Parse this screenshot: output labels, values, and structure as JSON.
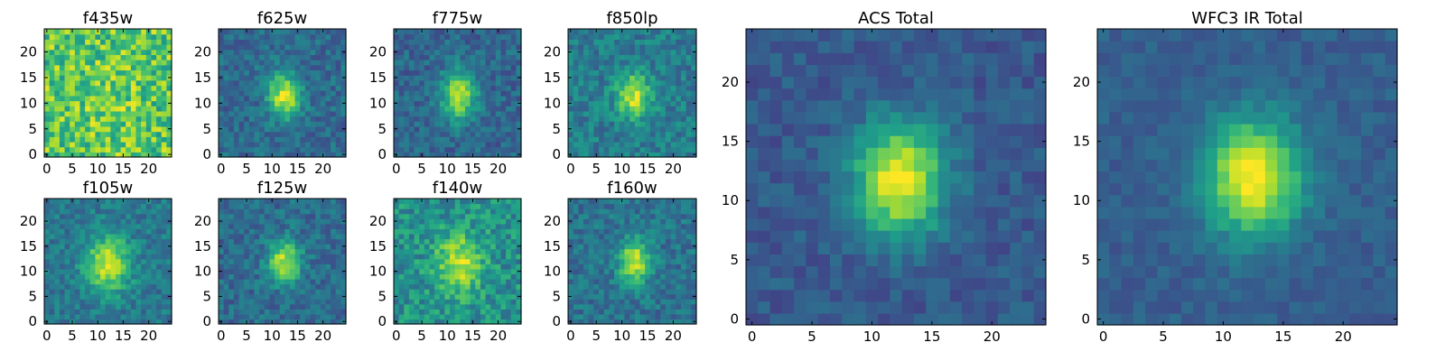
{
  "chart_data": {
    "type": "heatmap",
    "colormap": "viridis",
    "grid_size": 25,
    "panels": [
      {
        "name": "f435w",
        "title": "f435w",
        "source": {
          "cx": 12,
          "cy": 11,
          "sx": 3.0,
          "sy": 3.8,
          "amp": 0.08
        },
        "background": 0.74,
        "noise": 0.22,
        "xticks": [
          0,
          5,
          10,
          15,
          20
        ],
        "yticks": [
          0,
          5,
          10,
          15,
          20
        ],
        "xlim": [
          0,
          25
        ],
        "ylim": [
          0,
          25
        ]
      },
      {
        "name": "f625w",
        "title": "f625w",
        "source": {
          "cx": 12.5,
          "cy": 11.5,
          "sx": 2.2,
          "sy": 3.0,
          "amp": 0.6
        },
        "background": 0.35,
        "noise": 0.12,
        "xticks": [
          0,
          5,
          10,
          15,
          20
        ],
        "yticks": [
          0,
          5,
          10,
          15,
          20
        ],
        "xlim": [
          0,
          25
        ],
        "ylim": [
          0,
          25
        ]
      },
      {
        "name": "f775w",
        "title": "f775w",
        "source": {
          "cx": 12.3,
          "cy": 11.5,
          "sx": 2.3,
          "sy": 3.4,
          "amp": 0.58
        },
        "background": 0.33,
        "noise": 0.12,
        "xticks": [
          0,
          5,
          10,
          15,
          20
        ],
        "yticks": [
          0,
          5,
          10,
          15,
          20
        ],
        "xlim": [
          0,
          25
        ],
        "ylim": [
          0,
          25
        ]
      },
      {
        "name": "f850lp",
        "title": "f850lp",
        "source": {
          "cx": 12.3,
          "cy": 11.5,
          "sx": 2.3,
          "sy": 3.0,
          "amp": 0.5
        },
        "background": 0.42,
        "noise": 0.13,
        "xticks": [
          0,
          5,
          10,
          15,
          20
        ],
        "yticks": [
          0,
          5,
          10,
          15,
          20
        ],
        "xlim": [
          0,
          25
        ],
        "ylim": [
          0,
          25
        ]
      },
      {
        "name": "f105w",
        "title": "f105w",
        "source": {
          "cx": 12,
          "cy": 11.5,
          "sx": 3.0,
          "sy": 4.0,
          "amp": 0.52
        },
        "background": 0.4,
        "noise": 0.12,
        "xticks": [
          0,
          5,
          10,
          15,
          20
        ],
        "yticks": [
          0,
          5,
          10,
          15,
          20
        ],
        "xlim": [
          0,
          25
        ],
        "ylim": [
          0,
          25
        ]
      },
      {
        "name": "f125w",
        "title": "f125w",
        "source": {
          "cx": 12.5,
          "cy": 12,
          "sx": 2.3,
          "sy": 3.0,
          "amp": 0.55
        },
        "background": 0.35,
        "noise": 0.12,
        "xticks": [
          0,
          5,
          10,
          15,
          20
        ],
        "yticks": [
          0,
          5,
          10,
          15,
          20
        ],
        "xlim": [
          0,
          25
        ],
        "ylim": [
          0,
          25
        ]
      },
      {
        "name": "f140w",
        "title": "f140w",
        "source": {
          "cx": 12.5,
          "cy": 11.5,
          "sx": 3.0,
          "sy": 4.0,
          "amp": 0.45
        },
        "background": 0.5,
        "noise": 0.16,
        "xticks": [
          0,
          5,
          10,
          15,
          20
        ],
        "yticks": [
          0,
          5,
          10,
          15,
          20
        ],
        "xlim": [
          0,
          25
        ],
        "ylim": [
          0,
          25
        ]
      },
      {
        "name": "f160w",
        "title": "f160w",
        "source": {
          "cx": 12.5,
          "cy": 12,
          "sx": 2.2,
          "sy": 3.0,
          "amp": 0.55
        },
        "background": 0.38,
        "noise": 0.12,
        "xticks": [
          0,
          5,
          10,
          15,
          20
        ],
        "yticks": [
          0,
          5,
          10,
          15,
          20
        ],
        "xlim": [
          0,
          25
        ],
        "ylim": [
          0,
          25
        ]
      },
      {
        "name": "acs-total",
        "title": "ACS Total",
        "source": {
          "cx": 12.3,
          "cy": 11.8,
          "sx": 2.6,
          "sy": 3.4,
          "amp": 0.72
        },
        "background": 0.28,
        "noise": 0.08,
        "xticks": [
          0,
          5,
          10,
          15,
          20
        ],
        "yticks": [
          0,
          5,
          10,
          15,
          20
        ],
        "xlim": [
          0,
          25
        ],
        "ylim": [
          0,
          25
        ]
      },
      {
        "name": "wfc3-ir-total",
        "title": "WFC3 IR Total",
        "source": {
          "cx": 12.5,
          "cy": 12,
          "sx": 2.8,
          "sy": 3.4,
          "amp": 0.72
        },
        "background": 0.3,
        "noise": 0.06,
        "xticks": [
          0,
          5,
          10,
          15,
          20
        ],
        "yticks": [
          0,
          5,
          10,
          15,
          20
        ],
        "xlim": [
          0,
          25
        ],
        "ylim": [
          0,
          25
        ]
      }
    ]
  }
}
